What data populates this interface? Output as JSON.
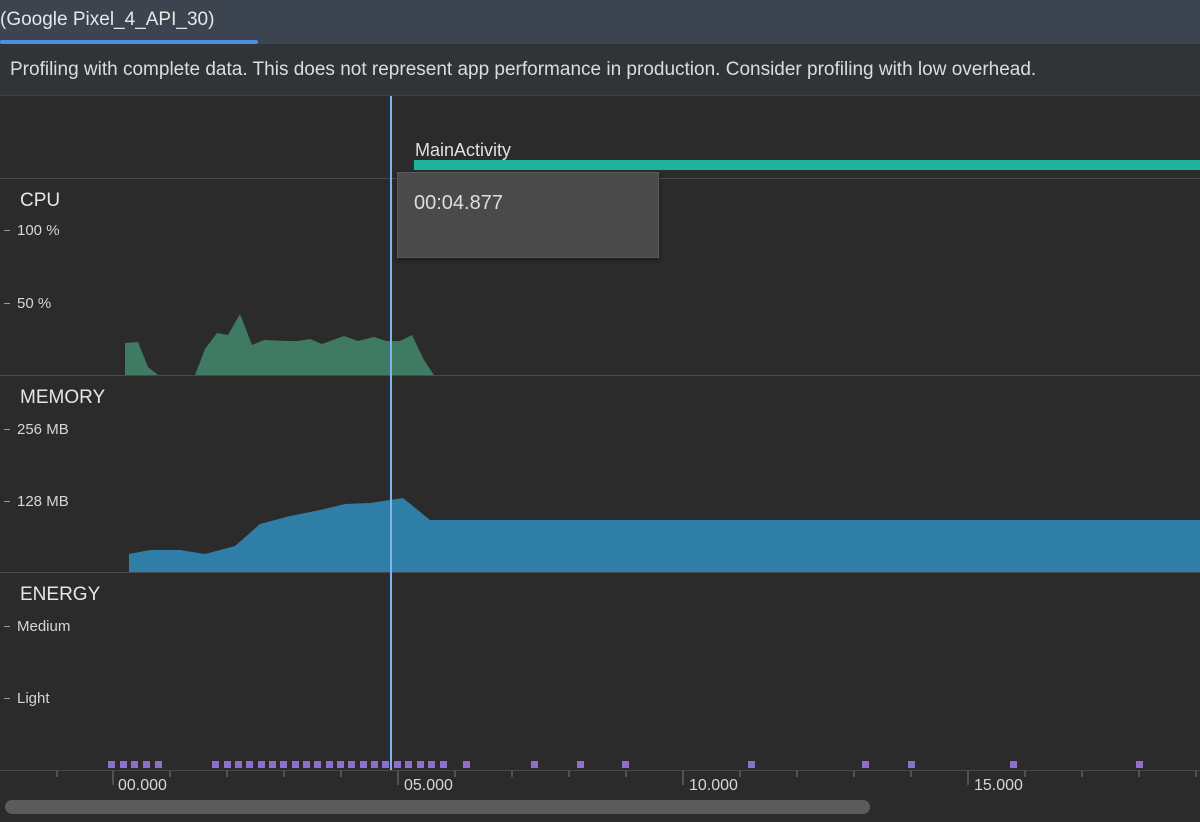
{
  "tab": {
    "label": "(Google Pixel_4_API_30)"
  },
  "banner": {
    "text": "Profiling with complete data. This does not represent app performance in production. Consider profiling with low overhead."
  },
  "events": {
    "activity_label": "MainActivity"
  },
  "cpu": {
    "title": "CPU",
    "axis_labels": [
      "100 %",
      "50 %"
    ]
  },
  "memory": {
    "title": "MEMORY",
    "axis_labels": [
      "256 MB",
      "128 MB"
    ]
  },
  "energy": {
    "title": "ENERGY",
    "axis_labels": [
      "Medium",
      "Light"
    ]
  },
  "tooltip": {
    "time": "00:04.877"
  },
  "timeline": {
    "labels": [
      "00.000",
      "05.000",
      "10.000",
      "15.000"
    ]
  },
  "colors": {
    "cpu_fill": "#3f7a63",
    "memory_fill": "#2e7ea8",
    "energy_marker": "#8e6fcf",
    "activity_bar": "#1fb39b",
    "cursor": "#7fb2f0",
    "tab_underline": "#4d8de6"
  }
}
